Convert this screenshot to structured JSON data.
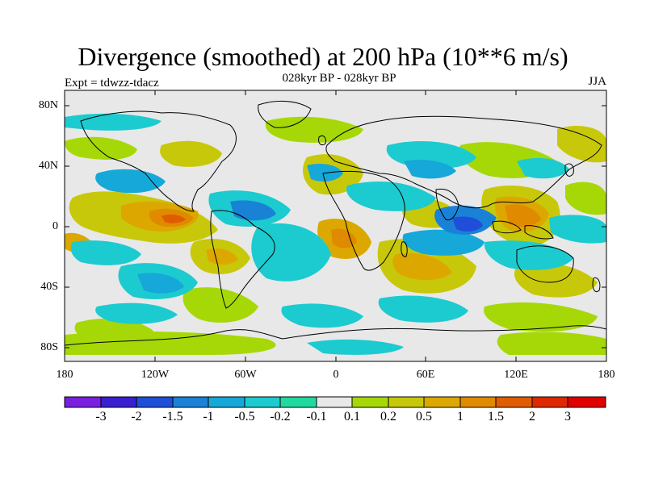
{
  "title": "Divergence (smoothed) at 200 hPa (10**6 m/s)",
  "subtitle": "028kyr BP - 028kyr BP",
  "experiment": "Expt = tdwzz-tdacz",
  "season": "JJA",
  "lat_ticks": [
    "80N",
    "40N",
    "0",
    "40S",
    "80S"
  ],
  "lon_ticks": [
    "180",
    "120W",
    "60W",
    "0",
    "60E",
    "120E",
    "180"
  ],
  "colorbar": {
    "labels": [
      "-3",
      "-2",
      "-1.5",
      "-1",
      "-0.5",
      "-0.2",
      "-0.1",
      "0.1",
      "0.2",
      "0.5",
      "1",
      "1.5",
      "2",
      "3"
    ],
    "colors": [
      "#7a1fe0",
      "#3a1fd0",
      "#1f4fd8",
      "#1a82d6",
      "#16a8d8",
      "#1ccbd0",
      "#20d8a0",
      "#e8e8e8",
      "#a6d808",
      "#c8c80a",
      "#dca800",
      "#e08a00",
      "#e05c00",
      "#e02800",
      "#e00000"
    ]
  },
  "legend_colors": {
    "background_zero": "#e8e8e8",
    "blue_light": "#20d8a0",
    "cyan": "#1ccbd0",
    "teal": "#16a8d8",
    "blue": "#1a82d6",
    "green": "#a6d808",
    "olive": "#c8c80a",
    "orange": "#dca800",
    "deep_orange": "#e08a00",
    "red": "#e05c00"
  }
}
